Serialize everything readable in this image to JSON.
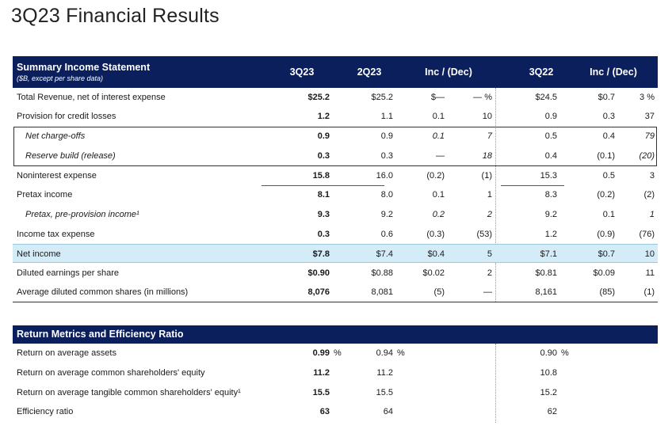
{
  "title": "3Q23 Financial Results",
  "summary": {
    "header": "Summary Income Statement",
    "subheader": "($B, except per share data)",
    "columns": [
      "3Q23",
      "2Q23",
      "Inc / (Dec)",
      "3Q22",
      "Inc / (Dec)"
    ],
    "rows": [
      {
        "label": "Total Revenue, net of interest expense",
        "q3_23": "$25.2",
        "q2_23": "$25.2",
        "inc_amt": "$—",
        "inc_pct": "— %",
        "q3_22": "$24.5",
        "inc2_amt": "$0.7",
        "inc2_pct": "3 %"
      },
      {
        "label": "Provision for credit losses",
        "q3_23": "1.2",
        "q2_23": "1.1",
        "inc_amt": "0.1",
        "inc_pct": "10",
        "q3_22": "0.9",
        "inc2_amt": "0.3",
        "inc2_pct": "37"
      },
      {
        "label": "Net charge-offs",
        "q3_23": "0.9",
        "q2_23": "0.9",
        "inc_amt": "0.1",
        "inc_pct": "7",
        "q3_22": "0.5",
        "inc2_amt": "0.4",
        "inc2_pct": "79"
      },
      {
        "label": "Reserve build (release)",
        "q3_23": "0.3",
        "q2_23": "0.3",
        "inc_amt": "—",
        "inc_pct": "18",
        "q3_22": "0.4",
        "inc2_amt": "(0.1)",
        "inc2_pct": "(20)"
      },
      {
        "label": "Noninterest expense",
        "q3_23": "15.8",
        "q2_23": "16.0",
        "inc_amt": "(0.2)",
        "inc_pct": "(1)",
        "q3_22": "15.3",
        "inc2_amt": "0.5",
        "inc2_pct": "3"
      },
      {
        "label": "Pretax income",
        "q3_23": "8.1",
        "q2_23": "8.0",
        "inc_amt": "0.1",
        "inc_pct": "1",
        "q3_22": "8.3",
        "inc2_amt": "(0.2)",
        "inc2_pct": "(2)"
      },
      {
        "label": "Pretax, pre-provision income¹",
        "q3_23": "9.3",
        "q2_23": "9.2",
        "inc_amt": "0.2",
        "inc_pct": "2",
        "q3_22": "9.2",
        "inc2_amt": "0.1",
        "inc2_pct": "1"
      },
      {
        "label": "Income tax expense",
        "q3_23": "0.3",
        "q2_23": "0.6",
        "inc_amt": "(0.3)",
        "inc_pct": "(53)",
        "q3_22": "1.2",
        "inc2_amt": "(0.9)",
        "inc2_pct": "(76)"
      },
      {
        "label": "Net income",
        "q3_23": "$7.8",
        "q2_23": "$7.4",
        "inc_amt": "$0.4",
        "inc_pct": "5",
        "q3_22": "$7.1",
        "inc2_amt": "$0.7",
        "inc2_pct": "10"
      },
      {
        "label": "Diluted earnings per share",
        "q3_23": "$0.90",
        "q2_23": "$0.88",
        "inc_amt": "$0.02",
        "inc_pct": "2",
        "q3_22": "$0.81",
        "inc2_amt": "$0.09",
        "inc2_pct": "11"
      },
      {
        "label": "Average diluted common shares (in millions)",
        "q3_23": "8,076",
        "q2_23": "8,081",
        "inc_amt": "(5)",
        "inc_pct": "—",
        "q3_22": "8,161",
        "inc2_amt": "(85)",
        "inc2_pct": "(1)"
      }
    ]
  },
  "returns": {
    "header": "Return Metrics and Efficiency Ratio",
    "rows": [
      {
        "label": "Return on average assets",
        "q3_23": "0.99",
        "q3_23_unit": "%",
        "q2_23": "0.94",
        "q2_23_unit": "%",
        "q3_22": "0.90",
        "q3_22_unit": "%"
      },
      {
        "label": "Return on average common shareholders' equity",
        "q3_23": "11.2",
        "q2_23": "11.2",
        "q3_22": "10.8"
      },
      {
        "label": "Return on average tangible common shareholders' equity¹",
        "q3_23": "15.5",
        "q2_23": "15.5",
        "q3_22": "15.2"
      },
      {
        "label": "Efficiency ratio",
        "q3_23": "63",
        "q2_23": "64",
        "q3_22": "62"
      }
    ]
  }
}
